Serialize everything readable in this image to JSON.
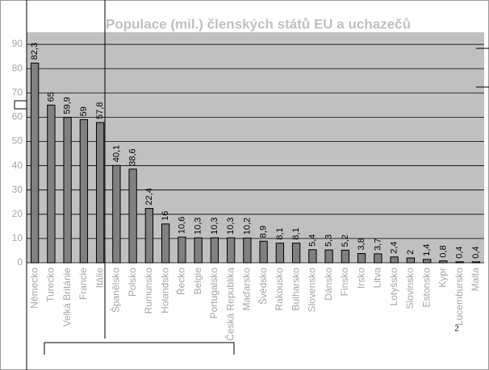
{
  "chart_data": {
    "type": "bar",
    "title": "Populace (mil.) členských států EU a uchazečů",
    "categories": [
      "Německo",
      "Turecko",
      "Velká Británie",
      "Francie",
      "Itálie",
      "Španělsko",
      "Polsko",
      "Rumunsko",
      "Holandsko",
      "Řecko",
      "Belgie",
      "Portugalsko",
      "Česká Republika",
      "Maďarsko",
      "Švédsko",
      "Rakousko",
      "Bulharsko",
      "Slovensko",
      "Dánsko",
      "Finsko",
      "Irsko",
      "Litva",
      "Lotyšsko",
      "Slovinsko",
      "Estonsko",
      "Kypr",
      "Lucembursko",
      "Malta"
    ],
    "values": [
      82.3,
      65,
      59.9,
      59,
      57.8,
      40.1,
      38.6,
      22.4,
      16,
      10.6,
      10.3,
      10.3,
      10.3,
      10.2,
      8.9,
      8.1,
      8.1,
      5.4,
      5.3,
      5.2,
      3.8,
      3.7,
      2.4,
      2,
      1.4,
      0.8,
      0.4,
      0.4
    ],
    "value_labels": [
      "82,3",
      "65",
      "59,9",
      "59",
      "57,8",
      "40,1",
      "38,6",
      "22,4",
      "16",
      "10,6",
      "10,3",
      "10,3",
      "10,3",
      "10,2",
      "8,9",
      "8,1",
      "8,1",
      "5,4",
      "5,3",
      "5,2",
      "3,8",
      "3,7",
      "2,4",
      "2",
      "1,4",
      "0,8",
      "0,4",
      "0,4"
    ],
    "color": "#808080",
    "ylim": [
      0,
      95
    ],
    "yticks": [
      0,
      10,
      20,
      30,
      40,
      50,
      60,
      70,
      80,
      90
    ],
    "grid": true
  },
  "page_number": "2"
}
